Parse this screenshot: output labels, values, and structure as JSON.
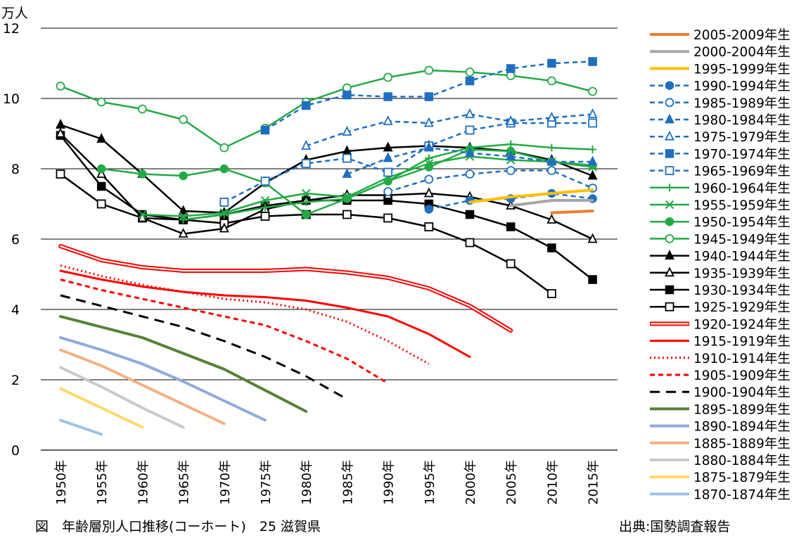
{
  "caption": "図　年齢層別人口推移(コーホート)　25 滋賀県",
  "source": "出典:国勢調査報告",
  "chart_data": {
    "type": "line",
    "title": "",
    "ylabel": "万人",
    "xlabel": "",
    "ylim": [
      0,
      12
    ],
    "yticks": [
      0,
      2,
      4,
      6,
      8,
      10,
      12
    ],
    "grid": true,
    "legend_position": "right",
    "categories": [
      "1950年",
      "1955年",
      "1960年",
      "1965年",
      "1970年",
      "1975年",
      "1980年",
      "1985年",
      "1990年",
      "1995年",
      "2000年",
      "2005年",
      "2010年",
      "2015年"
    ],
    "series": [
      {
        "name": "2005-2009年生",
        "color": "#ED7D31",
        "dash": "solid",
        "marker": "none",
        "width": 4,
        "values": [
          null,
          null,
          null,
          null,
          null,
          null,
          null,
          null,
          null,
          null,
          null,
          null,
          6.75,
          6.8
        ]
      },
      {
        "name": "2000-2004年生",
        "color": "#A5A5A5",
        "dash": "solid",
        "marker": "none",
        "width": 4,
        "values": [
          null,
          null,
          null,
          null,
          null,
          null,
          null,
          null,
          null,
          null,
          null,
          6.95,
          7.1,
          7.1
        ]
      },
      {
        "name": "1995-1999年生",
        "color": "#FFC000",
        "dash": "solid",
        "marker": "none",
        "width": 4,
        "values": [
          null,
          null,
          null,
          null,
          null,
          null,
          null,
          null,
          null,
          null,
          7.05,
          7.2,
          7.3,
          7.4
        ]
      },
      {
        "name": "1990-1994年生",
        "color": "#1F6FC0",
        "dash": "dash",
        "marker": "circle-filled",
        "width": 2.5,
        "values": [
          null,
          null,
          null,
          null,
          null,
          null,
          null,
          null,
          null,
          6.85,
          7.1,
          7.15,
          7.3,
          7.15
        ]
      },
      {
        "name": "1985-1989年生",
        "color": "#1F6FC0",
        "dash": "dash",
        "marker": "circle-open",
        "width": 2.5,
        "values": [
          null,
          null,
          null,
          null,
          null,
          null,
          null,
          null,
          7.35,
          7.7,
          7.85,
          7.95,
          7.95,
          7.45
        ]
      },
      {
        "name": "1980-1984年生",
        "color": "#1F6FC0",
        "dash": "dash",
        "marker": "triangle-filled",
        "width": 2.5,
        "values": [
          null,
          null,
          null,
          null,
          null,
          null,
          null,
          7.85,
          8.3,
          8.6,
          8.45,
          8.35,
          8.2,
          8.2
        ]
      },
      {
        "name": "1975-1979年生",
        "color": "#1F6FC0",
        "dash": "dash",
        "marker": "triangle-open",
        "width": 2.5,
        "values": [
          null,
          null,
          null,
          null,
          null,
          null,
          8.65,
          9.05,
          9.35,
          9.3,
          9.55,
          9.35,
          9.45,
          9.55
        ]
      },
      {
        "name": "1970-1974年生",
        "color": "#1F6FC0",
        "dash": "dash",
        "marker": "square-filled",
        "width": 2.5,
        "values": [
          null,
          null,
          null,
          null,
          null,
          9.1,
          9.8,
          10.1,
          10.05,
          10.05,
          10.5,
          10.85,
          11.0,
          11.05
        ]
      },
      {
        "name": "1965-1969年生",
        "color": "#1F6FC0",
        "dash": "dash",
        "marker": "square-open",
        "width": 2.5,
        "values": [
          null,
          null,
          null,
          null,
          7.05,
          7.65,
          8.15,
          8.3,
          7.9,
          8.65,
          9.1,
          9.3,
          9.3,
          9.3
        ]
      },
      {
        "name": "1960-1964年生",
        "color": "#22AA44",
        "dash": "solid",
        "marker": "plus",
        "width": 2.5,
        "values": [
          null,
          null,
          null,
          6.55,
          6.7,
          6.9,
          7.05,
          7.15,
          7.65,
          8.3,
          8.6,
          8.7,
          8.6,
          8.55
        ]
      },
      {
        "name": "1955-1959年生",
        "color": "#22AA44",
        "dash": "solid",
        "marker": "x",
        "width": 2.5,
        "values": [
          null,
          null,
          6.7,
          6.65,
          6.75,
          7.1,
          7.3,
          7.2,
          7.75,
          8.15,
          8.35,
          8.25,
          8.2,
          8.05
        ]
      },
      {
        "name": "1950-1954年生",
        "color": "#22AA44",
        "dash": "solid",
        "marker": "circle-filled",
        "width": 2.5,
        "values": [
          null,
          8.0,
          7.85,
          7.8,
          8.0,
          7.6,
          6.7,
          7.15,
          7.65,
          8.05,
          8.55,
          8.5,
          8.2,
          8.1
        ]
      },
      {
        "name": "1945-1949年生",
        "color": "#22AA44",
        "dash": "solid",
        "marker": "circle-open",
        "width": 2.5,
        "values": [
          10.35,
          9.9,
          9.7,
          9.4,
          8.6,
          9.15,
          9.9,
          10.3,
          10.6,
          10.8,
          10.75,
          10.65,
          10.5,
          10.2
        ]
      },
      {
        "name": "1940-1944年生",
        "color": "#000000",
        "dash": "solid",
        "marker": "triangle-filled",
        "width": 2.5,
        "values": [
          9.25,
          8.85,
          7.85,
          6.8,
          6.75,
          7.6,
          8.25,
          8.5,
          8.6,
          8.65,
          8.6,
          8.5,
          8.25,
          7.8
        ]
      },
      {
        "name": "1935-1939年生",
        "color": "#000000",
        "dash": "solid",
        "marker": "triangle-open",
        "width": 2.5,
        "values": [
          9.0,
          7.85,
          6.6,
          6.15,
          6.3,
          6.85,
          7.1,
          7.25,
          7.25,
          7.3,
          7.2,
          6.95,
          6.55,
          6.0
        ]
      },
      {
        "name": "1930-1934年生",
        "color": "#000000",
        "dash": "solid",
        "marker": "square-filled",
        "width": 2.5,
        "values": [
          8.95,
          7.5,
          6.7,
          6.55,
          6.7,
          6.95,
          7.1,
          7.1,
          7.1,
          7.0,
          6.7,
          6.35,
          5.75,
          4.85
        ]
      },
      {
        "name": "1925-1929年生",
        "color": "#000000",
        "dash": "solid",
        "marker": "square-open",
        "width": 2.5,
        "values": [
          7.85,
          7.0,
          6.6,
          6.55,
          6.45,
          6.65,
          6.7,
          6.7,
          6.6,
          6.35,
          5.9,
          5.3,
          4.45,
          null
        ]
      },
      {
        "name": "1920-1924年生",
        "color": "#FF0000",
        "dash": "double",
        "marker": "none",
        "width": 2,
        "values": [
          5.8,
          5.4,
          5.2,
          5.1,
          5.1,
          5.1,
          5.15,
          5.05,
          4.9,
          4.6,
          4.1,
          3.4,
          null,
          null
        ]
      },
      {
        "name": "1915-1919年生",
        "color": "#FF0000",
        "dash": "solid",
        "marker": "none",
        "width": 3,
        "values": [
          5.1,
          4.85,
          4.65,
          4.5,
          4.4,
          4.35,
          4.25,
          4.05,
          3.8,
          3.3,
          2.65,
          null,
          null,
          null
        ]
      },
      {
        "name": "1910-1914年生",
        "color": "#FF0000",
        "dash": "dot",
        "marker": "none",
        "width": 3,
        "values": [
          5.25,
          4.95,
          4.7,
          4.5,
          4.3,
          4.2,
          4.0,
          3.65,
          3.1,
          2.45,
          null,
          null,
          null,
          null
        ]
      },
      {
        "name": "1905-1909年生",
        "color": "#FF0000",
        "dash": "dash",
        "marker": "none",
        "width": 3,
        "values": [
          4.85,
          4.55,
          4.3,
          4.05,
          3.8,
          3.55,
          3.1,
          2.6,
          1.9,
          null,
          null,
          null,
          null,
          null
        ]
      },
      {
        "name": "1900-1904年生",
        "color": "#000000",
        "dash": "longdash",
        "marker": "none",
        "width": 3,
        "values": [
          4.4,
          4.1,
          3.8,
          3.5,
          3.1,
          2.65,
          2.1,
          1.45,
          null,
          null,
          null,
          null,
          null,
          null
        ]
      },
      {
        "name": "1895-1899年生",
        "color": "#548235",
        "dash": "solid",
        "marker": "none",
        "width": 4,
        "values": [
          3.8,
          3.5,
          3.2,
          2.75,
          2.3,
          1.7,
          1.1,
          null,
          null,
          null,
          null,
          null,
          null,
          null
        ]
      },
      {
        "name": "1890-1894年生",
        "color": "#8FAADC",
        "dash": "solid",
        "marker": "none",
        "width": 4,
        "values": [
          3.2,
          2.85,
          2.45,
          1.95,
          1.4,
          0.85,
          null,
          null,
          null,
          null,
          null,
          null,
          null,
          null
        ]
      },
      {
        "name": "1885-1889年生",
        "color": "#F4B183",
        "dash": "solid",
        "marker": "none",
        "width": 4,
        "values": [
          2.85,
          2.4,
          1.85,
          1.3,
          0.75,
          null,
          null,
          null,
          null,
          null,
          null,
          null,
          null,
          null
        ]
      },
      {
        "name": "1880-1884年生",
        "color": "#C9C9C9",
        "dash": "solid",
        "marker": "none",
        "width": 4,
        "values": [
          2.35,
          1.8,
          1.2,
          0.65,
          null,
          null,
          null,
          null,
          null,
          null,
          null,
          null,
          null,
          null
        ]
      },
      {
        "name": "1875-1879年生",
        "color": "#FFD966",
        "dash": "solid",
        "marker": "none",
        "width": 4,
        "values": [
          1.75,
          1.2,
          0.65,
          null,
          null,
          null,
          null,
          null,
          null,
          null,
          null,
          null,
          null,
          null
        ]
      },
      {
        "name": "1870-1874年生",
        "color": "#9DC3E6",
        "dash": "solid",
        "marker": "none",
        "width": 4,
        "values": [
          0.85,
          0.45,
          null,
          null,
          null,
          null,
          null,
          null,
          null,
          null,
          null,
          null,
          null,
          null
        ]
      }
    ]
  }
}
